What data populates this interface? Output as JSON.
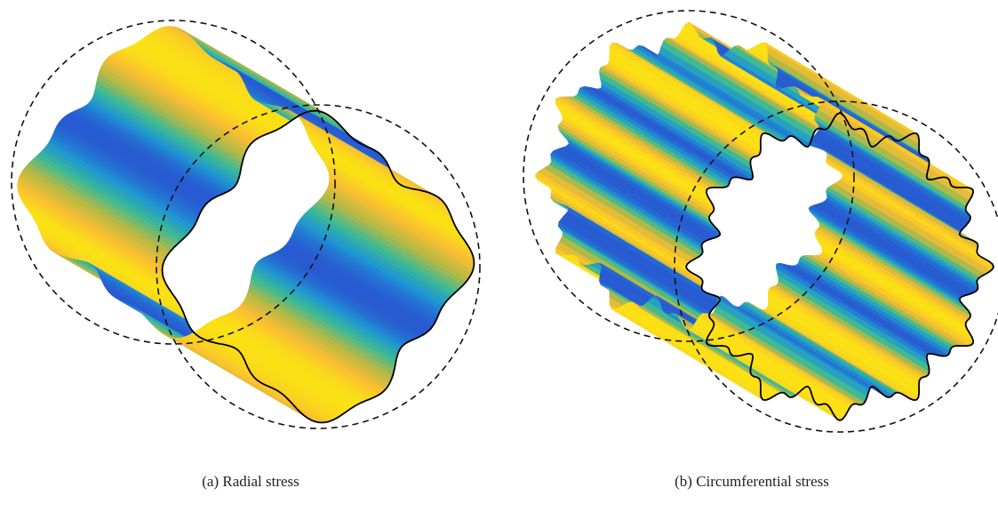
{
  "figure": {
    "panels": [
      {
        "caption": "(a) Radial stress"
      },
      {
        "caption": "(b) Circumferential stress"
      }
    ]
  }
}
